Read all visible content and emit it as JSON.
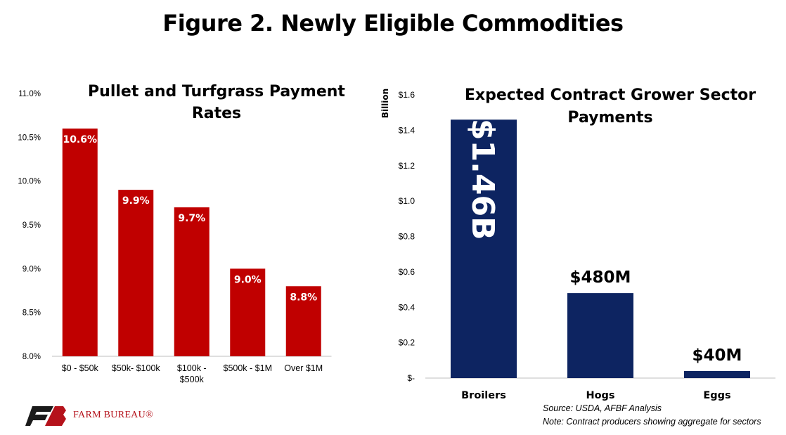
{
  "figure_title": "Figure 2. Newly Eligible Commodities",
  "source_line1": "Source:  USDA, AFBF Analysis",
  "source_line2": "Note: Contract producers showing aggregate for sectors",
  "logo_text": "FARM BUREAU®",
  "colors": {
    "left_bars": "#c00000",
    "right_bars": "#0d2461",
    "logo_red": "#b5121b"
  },
  "chart_data": [
    {
      "type": "bar",
      "title": "Pullet and Turfgrass Payment Rates",
      "title_lines": [
        "Pullet and Turfgrass Payment",
        "Rates"
      ],
      "categories": [
        "$0 - $50k",
        "$50k- $100k",
        "$100k - $500k",
        "$500k - $1M",
        "Over $1M"
      ],
      "category_lines": [
        [
          "$0 - $50k"
        ],
        [
          "$50k- $100k"
        ],
        [
          "$100k -",
          "$500k"
        ],
        [
          "$500k - $1M"
        ],
        [
          "Over $1M"
        ]
      ],
      "values": [
        10.6,
        9.9,
        9.7,
        9.0,
        8.8
      ],
      "data_labels": [
        "10.6%",
        "9.9%",
        "9.7%",
        "9.0%",
        "8.8%"
      ],
      "ylim": [
        8.0,
        11.0
      ],
      "yticks": [
        8.0,
        8.5,
        9.0,
        9.5,
        10.0,
        10.5,
        11.0
      ],
      "ytick_labels": [
        "8.0%",
        "8.5%",
        "9.0%",
        "9.5%",
        "10.0%",
        "10.5%",
        "11.0%"
      ],
      "xlabel": "",
      "ylabel": "",
      "grid": false
    },
    {
      "type": "bar",
      "title": "Expected Contract Grower Sector Payments",
      "title_lines": [
        "Expected Contract Grower Sector",
        "Payments"
      ],
      "categories": [
        "Broilers",
        "Hogs",
        "Eggs"
      ],
      "values": [
        1.46,
        0.48,
        0.04
      ],
      "data_labels": [
        "$1.46B",
        "$480M",
        "$40M"
      ],
      "ylim": [
        0,
        1.6
      ],
      "yticks": [
        0,
        0.2,
        0.4,
        0.6,
        0.8,
        1.0,
        1.2,
        1.4,
        1.6
      ],
      "ytick_labels": [
        "$-",
        "$0.2",
        "$0.4",
        "$0.6",
        "$0.8",
        "$1.0",
        "$1.2",
        "$1.4",
        "$1.6"
      ],
      "ylabel": "Billion",
      "xlabel": "",
      "grid": false
    }
  ]
}
